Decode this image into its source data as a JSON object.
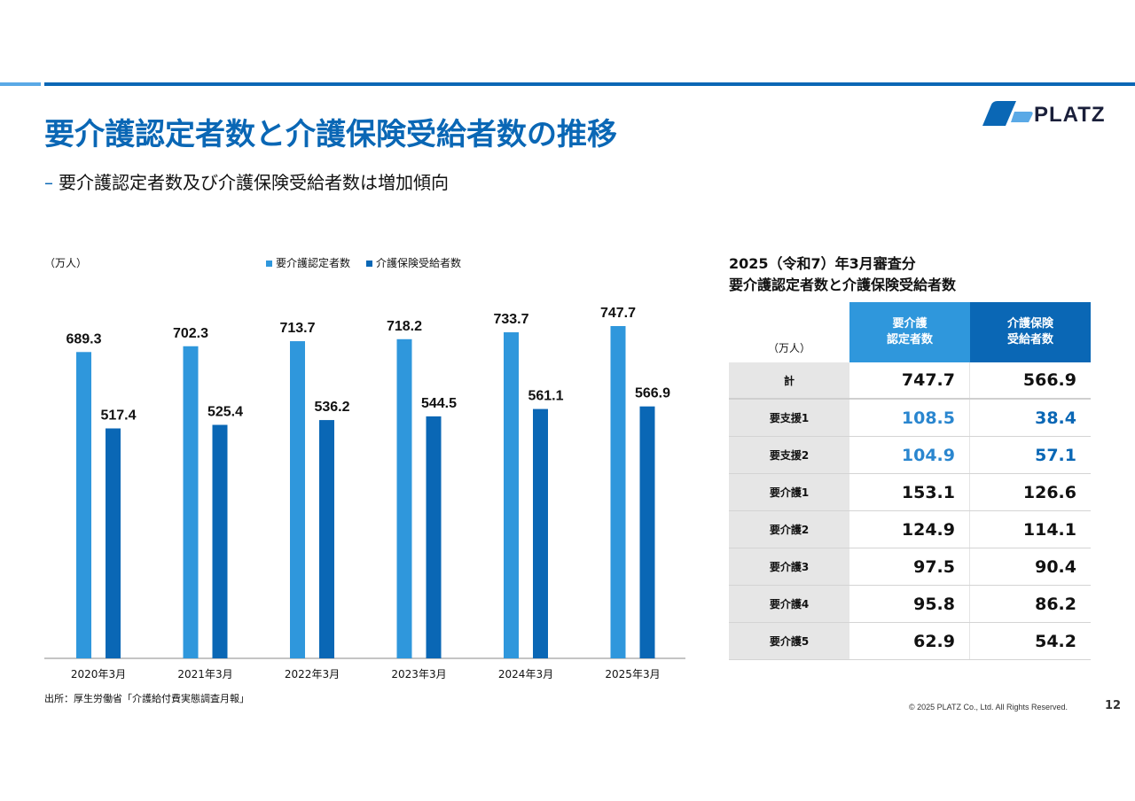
{
  "header": {
    "title": "要介護認定者数と介護保険受給者数の推移",
    "subtitle_dash": "–",
    "subtitle": "要介護認定者数及び介護保険受給者数は増加傾向",
    "logo_text": "PLATZ"
  },
  "colors": {
    "primary": "#0a67b5",
    "light": "#2f97dc",
    "accent_light": "#5aa9e6"
  },
  "chart_unit": "（万人）",
  "chart_data": {
    "type": "bar",
    "categories": [
      "2020年3月",
      "2021年3月",
      "2022年3月",
      "2023年3月",
      "2024年3月",
      "2025年3月"
    ],
    "series": [
      {
        "name": "要介護認定者数",
        "color": "#2f97dc",
        "values": [
          689.3,
          702.3,
          713.7,
          718.2,
          733.7,
          747.7
        ]
      },
      {
        "name": "介護保険受給者数",
        "color": "#0a67b5",
        "values": [
          517.4,
          525.4,
          536.2,
          544.5,
          561.1,
          566.9
        ]
      }
    ],
    "ylim": [
      0,
      800
    ],
    "legend": "top-center",
    "grid": false
  },
  "source": "出所：厚生労働省「介護給付費実態調査月報」",
  "table": {
    "title_line1": "2025（令和7）年3月審査分",
    "title_line2": "要介護認定者数と介護保険受給者数",
    "unit": "（万人）",
    "col1_header_line1": "要介護",
    "col1_header_line2": "認定者数",
    "col2_header_line1": "介護保険",
    "col2_header_line2": "受給者数",
    "rows": [
      {
        "label": "計",
        "v1": "747.7",
        "v2": "566.9"
      },
      {
        "label": "要支援1",
        "v1": "108.5",
        "v2": "38.4"
      },
      {
        "label": "要支援2",
        "v1": "104.9",
        "v2": "57.1"
      },
      {
        "label": "要介護1",
        "v1": "153.1",
        "v2": "126.6"
      },
      {
        "label": "要介護2",
        "v1": "124.9",
        "v2": "114.1"
      },
      {
        "label": "要介護3",
        "v1": "97.5",
        "v2": "90.4"
      },
      {
        "label": "要介護4",
        "v1": "95.8",
        "v2": "86.2"
      },
      {
        "label": "要介護5",
        "v1": "62.9",
        "v2": "54.2"
      }
    ]
  },
  "footer": {
    "copyright": "© 2025 PLATZ Co., Ltd. All Rights Reserved.",
    "page": "12"
  }
}
